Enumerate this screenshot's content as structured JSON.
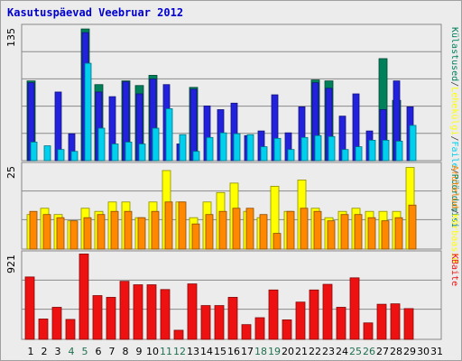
{
  "title": "Kasutuspäevad Veebruar 2012",
  "colors": {
    "visits": "#00805a",
    "pages": "#2222dd",
    "hits": "#00d0ee",
    "unique": "#ffff00",
    "bandwidth": "#ff8800",
    "kb": "#ee1111",
    "weekend_label": "#207050",
    "weekday_label": "#000000",
    "separator": "#444444"
  },
  "chart_data": [
    {
      "type": "bar",
      "panel": "top",
      "ymax_label": "135",
      "ylim": [
        0,
        145
      ],
      "legend": [
        {
          "label": "Külastused",
          "color": "#00805a"
        },
        {
          "label": "Lehekülgi",
          "color": "#ffff00"
        },
        {
          "label": "Faile",
          "color": "#00d0ee"
        },
        {
          "label": "Pöördumisi",
          "color": "#00805a"
        }
      ],
      "separators": [
        "/",
        "/",
        "/"
      ],
      "series": [
        {
          "name": "Külastused",
          "values": [
            86,
            0,
            0,
            0,
            142,
            82,
            0,
            86,
            81,
            92,
            0,
            0,
            79,
            0,
            0,
            0,
            0,
            0,
            0,
            0,
            0,
            87,
            86,
            0,
            0,
            0,
            110,
            65,
            0,
            0,
            0
          ]
        },
        {
          "name": "Lehekülgi",
          "values": [
            84,
            0,
            74,
            29,
            138,
            74,
            69,
            85,
            72,
            88,
            82,
            18,
            77,
            59,
            55,
            62,
            27,
            32,
            71,
            30,
            58,
            84,
            78,
            48,
            72,
            32,
            55,
            86,
            58,
            0,
            0
          ]
        },
        {
          "name": "Faile",
          "values": [
            20,
            16,
            12,
            10,
            105,
            35,
            18,
            20,
            18,
            35,
            56,
            28,
            10,
            25,
            30,
            29,
            28,
            15,
            24,
            12,
            25,
            27,
            26,
            12,
            15,
            22,
            22,
            21,
            38,
            0,
            0
          ]
        }
      ]
    },
    {
      "type": "bar",
      "panel": "middle",
      "ymax_label": "25",
      "ylim": [
        0,
        27
      ],
      "series": [
        {
          "name": "Arutelud",
          "values": [
            11,
            13,
            11,
            9,
            13,
            12,
            15,
            15,
            10,
            15,
            25,
            15,
            10,
            15,
            18,
            21,
            12,
            10,
            20,
            12,
            22,
            13,
            10,
            12,
            13,
            12,
            12,
            12,
            26,
            0,
            0
          ]
        },
        {
          "name": "Kõrbaasid",
          "values": [
            12,
            11,
            10,
            9,
            10,
            11,
            12,
            12,
            10,
            12,
            15,
            15,
            8,
            11,
            12,
            13,
            13,
            11,
            5,
            12,
            13,
            12,
            9,
            11,
            11,
            10,
            9,
            10,
            14,
            0,
            0
          ]
        }
      ]
    },
    {
      "type": "bar",
      "panel": "bottom",
      "ymax_label": "921",
      "ylim": [
        0,
        1000
      ],
      "series": [
        {
          "name": "KBaite",
          "values": [
            720,
            235,
            370,
            230,
            985,
            505,
            485,
            670,
            630,
            630,
            575,
            105,
            640,
            390,
            390,
            485,
            170,
            250,
            570,
            225,
            430,
            570,
            635,
            370,
            710,
            190,
            405,
            410,
            355,
            0,
            0
          ]
        }
      ]
    }
  ],
  "side_labels": {
    "middle": [
      {
        "text": "Arutelud",
        "color": "#ff8800"
      },
      {
        "text": "/",
        "color": "#444444"
      },
      {
        "text": "Kõrbaasid",
        "color": "#ffff00"
      }
    ],
    "bottom": [
      {
        "text": "KBaite",
        "color": "#ee1111"
      }
    ]
  },
  "days": [
    "1",
    "2",
    "3",
    "4",
    "5",
    "6",
    "7",
    "8",
    "9",
    "10",
    "11",
    "12",
    "13",
    "14",
    "15",
    "16",
    "17",
    "18",
    "19",
    "20",
    "21",
    "22",
    "23",
    "24",
    "25",
    "26",
    "27",
    "28",
    "29",
    "30",
    "31"
  ],
  "weekend_days": [
    4,
    5,
    11,
    12,
    18,
    19,
    25,
    26
  ]
}
